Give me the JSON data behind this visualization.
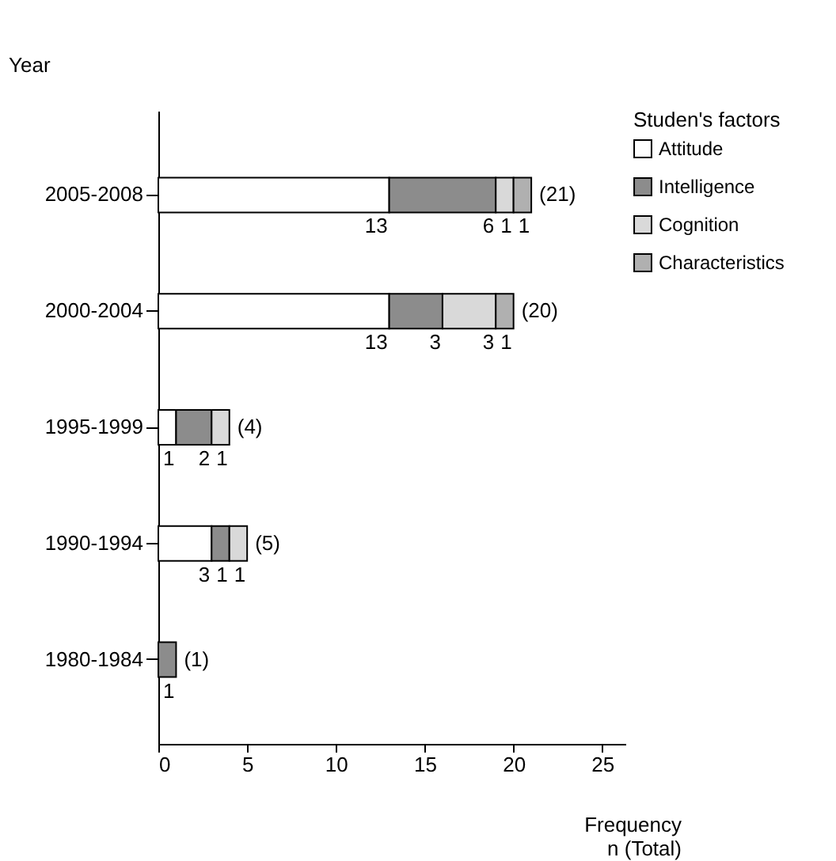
{
  "chart_data": {
    "type": "bar",
    "orientation": "horizontal",
    "stacked": true,
    "categories": [
      "2005-2008",
      "2000-2004",
      "1995-1999",
      "1990-1994",
      "1980-1984"
    ],
    "series": [
      {
        "name": "Attitude",
        "color": "#ffffff",
        "values": [
          13,
          13,
          1,
          3,
          null
        ],
        "value_labels": [
          "13",
          "13",
          "1",
          "3",
          null
        ]
      },
      {
        "name": "Intelligence",
        "color": "#8c8c8c",
        "values": [
          6,
          3,
          2,
          1,
          1
        ],
        "value_labels": [
          "6",
          "3",
          "2",
          "1",
          "1"
        ]
      },
      {
        "name": "Cognition",
        "color": "#d9d9d9",
        "values": [
          1,
          3,
          1,
          1,
          null
        ],
        "value_labels": [
          "1",
          "3",
          "1",
          "1",
          null
        ]
      },
      {
        "name": "Characteristics",
        "color": "#b0b0b0",
        "values": [
          1,
          1,
          null,
          null,
          null
        ],
        "value_labels": [
          "1",
          "1",
          null,
          null,
          null
        ]
      }
    ],
    "totals": [
      "(21)",
      "(20)",
      "(4)",
      "(5)",
      "(1)"
    ],
    "xlim": [
      0,
      26.3
    ],
    "xticks": [
      0,
      5,
      10,
      15,
      20,
      25
    ],
    "xlabel": "Frequency\nn (Total)",
    "ylabel": "Year",
    "legend_title": "Studen's factors",
    "legend": "top right",
    "grid": false
  }
}
